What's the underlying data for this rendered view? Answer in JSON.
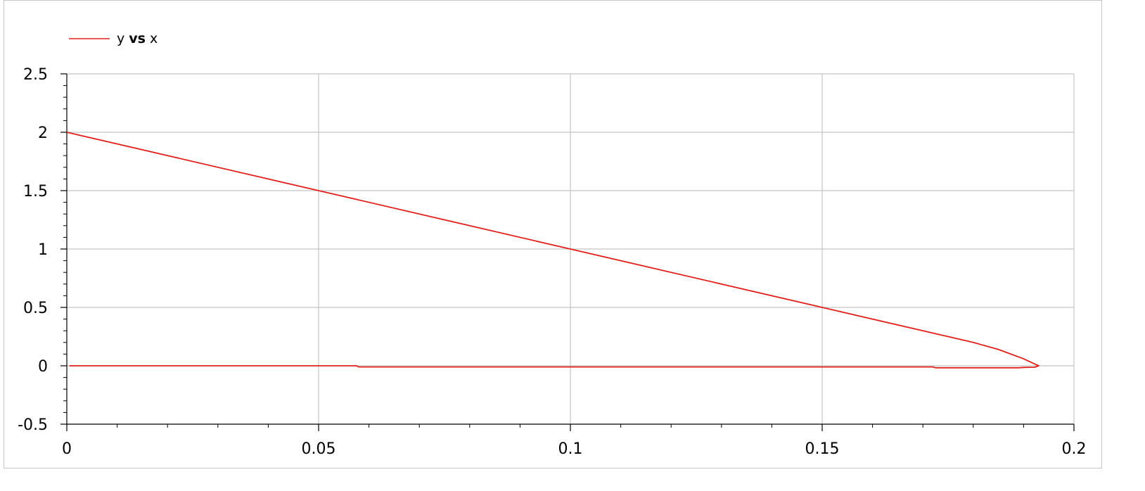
{
  "chart_data": {
    "type": "line",
    "title": "",
    "xlabel": "",
    "ylabel": "",
    "xlim": [
      0,
      0.2
    ],
    "ylim": [
      -0.5,
      2.5
    ],
    "grid": true,
    "legend_position": "top-left",
    "x_ticks": [
      0,
      0.05,
      0.1,
      0.15,
      0.2
    ],
    "x_tick_labels": [
      "0",
      "0.05",
      "0.1",
      "0.15",
      "0.2"
    ],
    "y_ticks": [
      -0.5,
      0,
      0.5,
      1,
      1.5,
      2,
      2.5
    ],
    "y_tick_labels": [
      "-0.5",
      "0",
      "0.5",
      "1",
      "1.5",
      "2",
      "2.5"
    ],
    "legend": {
      "prefix": "y ",
      "bold": "vs",
      "suffix": " x"
    },
    "series": [
      {
        "name": "y vs x",
        "color": "#e0201b",
        "points": [
          [
            0,
            2.0
          ],
          [
            0.05,
            1.5
          ],
          [
            0.1,
            1.0
          ],
          [
            0.15,
            0.5
          ],
          [
            0.18,
            0.2
          ],
          [
            0.185,
            0.14
          ],
          [
            0.19,
            0.06
          ],
          [
            0.1915,
            0.03
          ],
          [
            0.1925,
            0.01
          ],
          [
            0.193,
            0.0
          ],
          [
            0.1922,
            -0.012
          ],
          [
            0.19,
            -0.014
          ],
          [
            0.189,
            -0.017
          ],
          [
            0.18,
            -0.017
          ],
          [
            0.1725,
            -0.017
          ],
          [
            0.172,
            -0.01
          ],
          [
            0.15,
            -0.01
          ],
          [
            0.1,
            -0.01
          ],
          [
            0.058,
            -0.01
          ],
          [
            0.0575,
            0.0
          ],
          [
            0.0005,
            0.0
          ]
        ]
      }
    ]
  }
}
